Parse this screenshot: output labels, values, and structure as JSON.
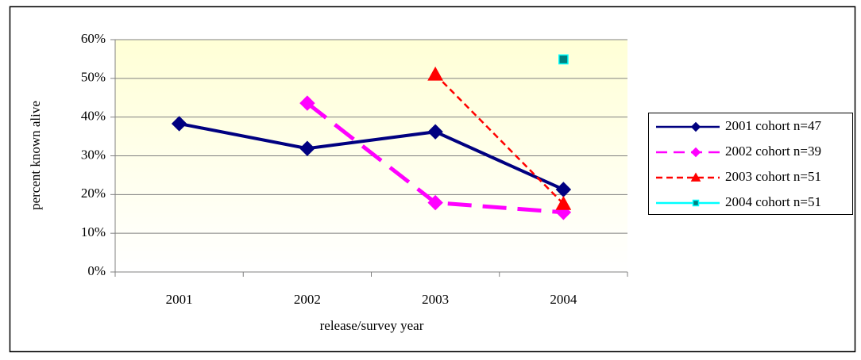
{
  "chart_data": {
    "type": "line",
    "x_label": "release/survey year",
    "y_label": "percent known alive",
    "categories": [
      "2001",
      "2002",
      "2003",
      "2004"
    ],
    "series": [
      {
        "name": "2001 cohort n=47",
        "color": "#000080",
        "marker": "diamond",
        "line_style": "solid",
        "values": [
          38.3,
          31.9,
          36.2,
          21.3
        ]
      },
      {
        "name": "2002 cohort n=39",
        "color": "#ff00ff",
        "marker": "diamond",
        "line_style": "long-dash",
        "values": [
          null,
          43.6,
          17.9,
          15.4
        ]
      },
      {
        "name": "2003 cohort n=51",
        "color": "#ff0000",
        "marker": "triangle",
        "line_style": "dash",
        "values": [
          null,
          null,
          51.0,
          17.6
        ]
      },
      {
        "name": "2004 cohort n=51",
        "color": "#00ffff",
        "marker": "square",
        "line_style": "solid",
        "values": [
          null,
          null,
          null,
          54.9
        ]
      }
    ],
    "ylim": [
      0,
      60
    ],
    "yticks": [
      {
        "value": 0,
        "label": "0%"
      },
      {
        "value": 10,
        "label": "10%"
      },
      {
        "value": 20,
        "label": "20%"
      },
      {
        "value": 30,
        "label": "30%"
      },
      {
        "value": 40,
        "label": "40%"
      },
      {
        "value": 50,
        "label": "50%"
      },
      {
        "value": 60,
        "label": "60%"
      }
    ],
    "grid": true,
    "legend": "right"
  }
}
